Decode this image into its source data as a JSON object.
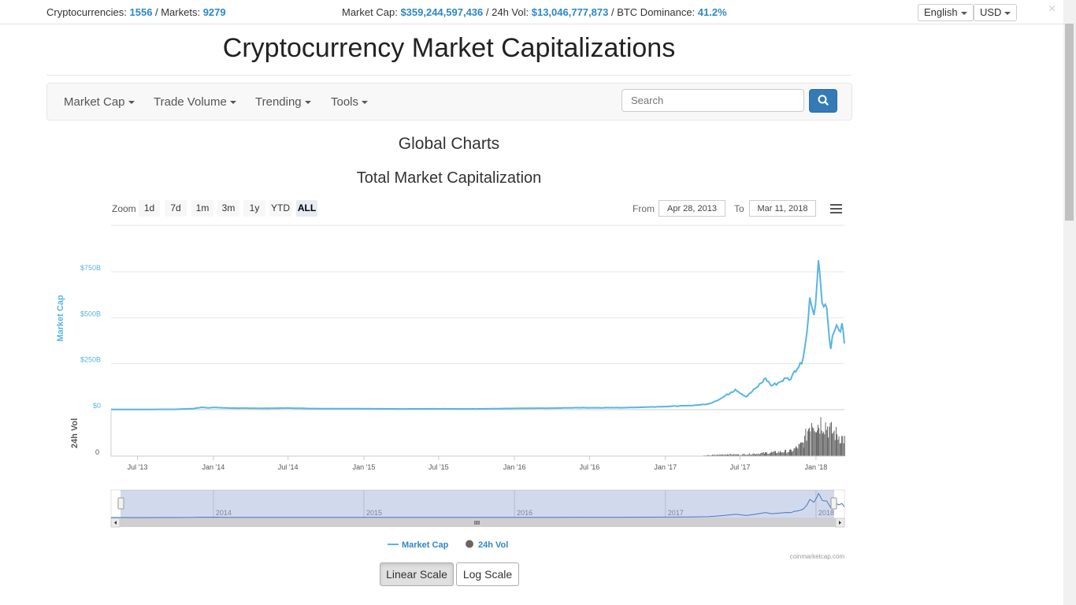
{
  "topbar": {
    "cryptocurrencies_label": "Cryptocurrencies:",
    "cryptocurrencies_value": "1556",
    "markets_label": "/ Markets:",
    "markets_value": "9279",
    "market_cap_label": "Market Cap:",
    "market_cap_value": "$359,244,597,436",
    "vol_label": "/ 24h Vol:",
    "vol_value": "$13,046,777,873",
    "btc_label": "/ BTC Dominance:",
    "btc_value": "41.2%",
    "language": "English",
    "currency": "USD",
    "close": "×"
  },
  "page_title": "Cryptocurrency Market Capitalizations",
  "nav": {
    "items": [
      "Market Cap",
      "Trade Volume",
      "Trending",
      "Tools"
    ],
    "search_placeholder": "Search",
    "search_icon": "search-icon"
  },
  "section_title": "Global Charts",
  "chart_controls": {
    "zoom_label": "Zoom",
    "zoom_options": [
      "1d",
      "7d",
      "1m",
      "3m",
      "1y",
      "YTD",
      "ALL"
    ],
    "zoom_active": "ALL",
    "from_label": "From",
    "from_value": "Apr 28, 2013",
    "to_label": "To",
    "to_value": "Mar 11, 2018",
    "menu_icon": "hamburger-menu-icon"
  },
  "scale_buttons": {
    "linear": "Linear Scale",
    "log": "Log Scale",
    "active": "Linear Scale"
  },
  "colors": {
    "market_cap_line": "#5ab4e5",
    "volume_bars": "#555555",
    "link_blue": "#2f88c8",
    "navigator_mask": "#cdd6ec"
  },
  "chart_data": {
    "type": "line",
    "title": "Total Market Capitalization",
    "x_ticks": [
      "Jul '13",
      "Jan '14",
      "Jul '14",
      "Jan '15",
      "Jul '15",
      "Jan '16",
      "Jul '16",
      "Jan '17",
      "Jul '17",
      "Jan '18"
    ],
    "x_range": [
      "2013-04-28",
      "2018-03-11"
    ],
    "credit": "coinmarketcap.com",
    "legend_placement": "bottom-center",
    "panes": [
      {
        "ylabel": "Market Cap",
        "y_ticks": [
          "$0",
          "$250B",
          "$500B",
          "$750B"
        ],
        "ylim": [
          0,
          750
        ],
        "unit": "billion USD",
        "grid": true
      },
      {
        "ylabel": "24h Vol",
        "y_ticks": [
          "0"
        ]
      }
    ],
    "series": [
      {
        "name": "Market Cap",
        "type": "line",
        "x": [
          "2013-04-28",
          "2013-07-01",
          "2013-10-01",
          "2013-11-15",
          "2013-12-04",
          "2013-12-20",
          "2014-01-05",
          "2014-02-01",
          "2014-03-01",
          "2014-05-01",
          "2014-07-01",
          "2014-09-01",
          "2014-11-01",
          "2015-01-01",
          "2015-04-01",
          "2015-07-01",
          "2015-10-01",
          "2016-01-01",
          "2016-04-01",
          "2016-06-15",
          "2016-07-01",
          "2016-10-01",
          "2017-01-01",
          "2017-03-01",
          "2017-04-15",
          "2017-05-15",
          "2017-06-10",
          "2017-06-20",
          "2017-07-16",
          "2017-08-10",
          "2017-09-01",
          "2017-09-15",
          "2017-10-01",
          "2017-10-20",
          "2017-11-01",
          "2017-11-10",
          "2017-11-20",
          "2017-12-01",
          "2017-12-10",
          "2017-12-17",
          "2017-12-22",
          "2017-12-27",
          "2018-01-04",
          "2018-01-07",
          "2018-01-10",
          "2018-01-16",
          "2018-01-20",
          "2018-01-27",
          "2018-02-06",
          "2018-02-10",
          "2018-02-20",
          "2018-02-26",
          "2018-03-05",
          "2018-03-11"
        ],
        "y": [
          1.5,
          1.2,
          1.8,
          6,
          13,
          10,
          12,
          9,
          8,
          7,
          8.5,
          6,
          5.5,
          5,
          4,
          4.5,
          4,
          7,
          8,
          11,
          10,
          11,
          17,
          22,
          30,
          60,
          95,
          110,
          70,
          120,
          170,
          130,
          145,
          170,
          165,
          210,
          230,
          280,
          420,
          610,
          560,
          515,
          700,
          813,
          750,
          580,
          560,
          555,
          330,
          400,
          460,
          430,
          470,
          359
        ]
      },
      {
        "name": "24h Vol",
        "type": "column",
        "x": [
          "2017-04-01",
          "2017-06-01",
          "2017-07-01",
          "2017-09-01",
          "2017-11-01",
          "2017-12-01",
          "2017-12-20",
          "2018-01-04",
          "2018-01-16",
          "2018-02-06",
          "2018-03-11"
        ],
        "y": [
          0.4,
          1.5,
          1.2,
          2.5,
          4,
          10,
          30,
          25,
          28,
          20,
          13
        ]
      }
    ]
  }
}
